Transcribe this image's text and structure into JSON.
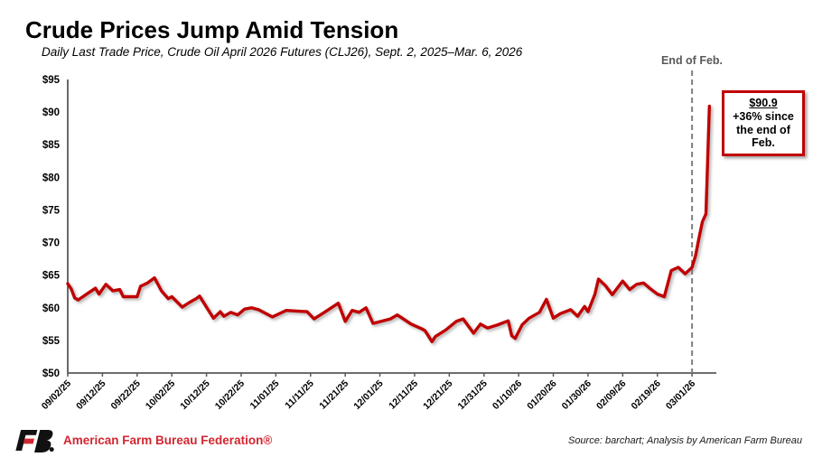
{
  "header": {
    "title": "Crude Prices Jump Amid Tension",
    "subtitle": "Daily Last Trade Price, Crude Oil April 2026 Futures (CLJ26), Sept. 2, 2025–Mar. 6, 2026"
  },
  "footer": {
    "brand": "American Farm Bureau Federation®",
    "source": "Source: barchart; Analysis by American Farm Bureau"
  },
  "chart_data": {
    "type": "line",
    "title": "Crude Prices Jump Amid Tension",
    "subtitle": "Daily Last Trade Price, Crude Oil April 2026 Futures (CLJ26), Sept. 2, 2025–Mar. 6, 2026",
    "x_unit": "calendar days since 09/02/25",
    "ylim": [
      50,
      95
    ],
    "x_domain_days": [
      0,
      187
    ],
    "grid": false,
    "legend": "none",
    "line_color": "#C00000",
    "axis_color": "#595959",
    "y_ticks": [
      {
        "v": 50,
        "label": "$50"
      },
      {
        "v": 55,
        "label": "$55"
      },
      {
        "v": 60,
        "label": "$60"
      },
      {
        "v": 65,
        "label": "$65"
      },
      {
        "v": 70,
        "label": "$70"
      },
      {
        "v": 75,
        "label": "$75"
      },
      {
        "v": 80,
        "label": "$80"
      },
      {
        "v": 85,
        "label": "$85"
      },
      {
        "v": 90,
        "label": "$90"
      },
      {
        "v": 95,
        "label": "$95"
      }
    ],
    "x_ticks": [
      {
        "t": 0,
        "label": "09/02/25"
      },
      {
        "t": 10,
        "label": "09/12/25"
      },
      {
        "t": 20,
        "label": "09/22/25"
      },
      {
        "t": 30,
        "label": "10/02/25"
      },
      {
        "t": 40,
        "label": "10/12/25"
      },
      {
        "t": 50,
        "label": "10/22/25"
      },
      {
        "t": 60,
        "label": "11/01/25"
      },
      {
        "t": 70,
        "label": "11/11/25"
      },
      {
        "t": 80,
        "label": "11/21/25"
      },
      {
        "t": 90,
        "label": "12/01/25"
      },
      {
        "t": 100,
        "label": "12/11/25"
      },
      {
        "t": 110,
        "label": "12/21/25"
      },
      {
        "t": 120,
        "label": "12/31/25"
      },
      {
        "t": 130,
        "label": "01/10/26"
      },
      {
        "t": 140,
        "label": "01/20/26"
      },
      {
        "t": 150,
        "label": "01/30/26"
      },
      {
        "t": 160,
        "label": "02/09/26"
      },
      {
        "t": 170,
        "label": "02/19/26"
      },
      {
        "t": 180,
        "label": "03/01/26"
      }
    ],
    "marker_line": {
      "t": 180,
      "label": "End of Feb.",
      "color": "#7f7f7f"
    },
    "annotation": {
      "value": "$90.9",
      "lines": [
        "+36% since",
        "the end of",
        "Feb."
      ],
      "border_color": "#C00000"
    },
    "series": [
      {
        "name": "Crude Oil April 2026 Futures (CLJ26) daily last trade price, $/barrel",
        "color": "#C00000",
        "points": [
          [
            0,
            63.7
          ],
          [
            1,
            62.9
          ],
          [
            2,
            61.5
          ],
          [
            3,
            61.2
          ],
          [
            6,
            62.3
          ],
          [
            8,
            63.0
          ],
          [
            9,
            62.1
          ],
          [
            11,
            63.6
          ],
          [
            13,
            62.6
          ],
          [
            15,
            62.8
          ],
          [
            16,
            61.7
          ],
          [
            20,
            61.7
          ],
          [
            21,
            63.3
          ],
          [
            23,
            63.8
          ],
          [
            25,
            64.6
          ],
          [
            27,
            62.6
          ],
          [
            29,
            61.4
          ],
          [
            30,
            61.7
          ],
          [
            33,
            60.1
          ],
          [
            35,
            60.8
          ],
          [
            37,
            61.4
          ],
          [
            38,
            61.8
          ],
          [
            40,
            60.1
          ],
          [
            42,
            58.4
          ],
          [
            44,
            59.4
          ],
          [
            45,
            58.7
          ],
          [
            47,
            59.3
          ],
          [
            49,
            58.9
          ],
          [
            51,
            59.8
          ],
          [
            53,
            60.0
          ],
          [
            55,
            59.7
          ],
          [
            59,
            58.6
          ],
          [
            63,
            59.6
          ],
          [
            66,
            59.5
          ],
          [
            69,
            59.4
          ],
          [
            71,
            58.3
          ],
          [
            74,
            59.3
          ],
          [
            78,
            60.7
          ],
          [
            80,
            57.9
          ],
          [
            82,
            59.6
          ],
          [
            84,
            59.3
          ],
          [
            86,
            60.0
          ],
          [
            88,
            57.6
          ],
          [
            93,
            58.3
          ],
          [
            95,
            58.9
          ],
          [
            99,
            57.5
          ],
          [
            102,
            56.8
          ],
          [
            103,
            56.5
          ],
          [
            105,
            54.8
          ],
          [
            106,
            55.6
          ],
          [
            109,
            56.6
          ],
          [
            112,
            57.9
          ],
          [
            114,
            58.3
          ],
          [
            117,
            56.1
          ],
          [
            119,
            57.5
          ],
          [
            121,
            56.9
          ],
          [
            124,
            57.4
          ],
          [
            127,
            58.0
          ],
          [
            128,
            55.7
          ],
          [
            129,
            55.3
          ],
          [
            131,
            57.4
          ],
          [
            133,
            58.4
          ],
          [
            136,
            59.3
          ],
          [
            138,
            61.3
          ],
          [
            140,
            58.4
          ],
          [
            142,
            59.1
          ],
          [
            145,
            59.7
          ],
          [
            147,
            58.7
          ],
          [
            149,
            60.2
          ],
          [
            150,
            59.4
          ],
          [
            152,
            62.1
          ],
          [
            153,
            64.4
          ],
          [
            155,
            63.4
          ],
          [
            157,
            62.0
          ],
          [
            159,
            63.4
          ],
          [
            160,
            64.1
          ],
          [
            162,
            62.8
          ],
          [
            164,
            63.6
          ],
          [
            166,
            63.8
          ],
          [
            168,
            62.9
          ],
          [
            170,
            62.1
          ],
          [
            172,
            61.7
          ],
          [
            174,
            65.7
          ],
          [
            176,
            66.2
          ],
          [
            178,
            65.2
          ],
          [
            180,
            66.2
          ],
          [
            181,
            68.0
          ],
          [
            182,
            70.7
          ],
          [
            183,
            73.2
          ],
          [
            184,
            74.4
          ],
          [
            185,
            90.9
          ]
        ]
      }
    ]
  }
}
